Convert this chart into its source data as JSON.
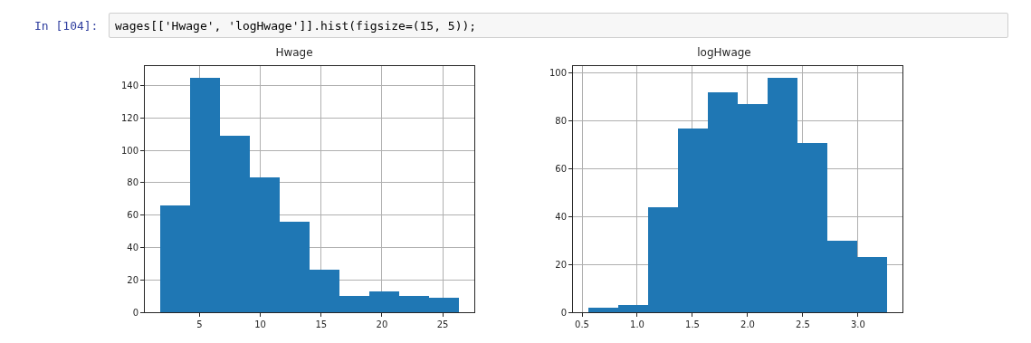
{
  "chart_data": [
    {
      "type": "histogram",
      "title": "Hwage",
      "annotations": [
        "In [104]:",
        "wages[['Hwage', 'logHwage']].hist(figsize=(15, 5));"
      ],
      "bins": [
        1.73,
        4.19,
        6.65,
        9.11,
        11.57,
        14.03,
        16.49,
        18.95,
        21.41,
        23.87,
        26.33
      ],
      "values": [
        66,
        145,
        109,
        83,
        56,
        26,
        10,
        13,
        10,
        9
      ],
      "color": "#1f77b4",
      "xlim": [
        0.5,
        27.6
      ],
      "xticks": [
        5,
        10,
        15,
        20,
        25
      ],
      "ylim": [
        0,
        152
      ],
      "yticks": [
        0,
        20,
        40,
        60,
        80,
        100,
        120,
        140
      ],
      "grid": true
    },
    {
      "type": "histogram",
      "title": "logHwage",
      "bins": [
        0.555,
        0.826,
        1.097,
        1.368,
        1.639,
        1.91,
        2.181,
        2.452,
        2.723,
        2.994,
        3.265
      ],
      "values": [
        2,
        3,
        44,
        77,
        92,
        87,
        98,
        71,
        30,
        23
      ],
      "color": "#1f77b4",
      "xlim": [
        0.418,
        3.402
      ],
      "xticks": [
        {
          "value": 0.5,
          "label": "0.5"
        },
        {
          "value": 1,
          "label": "1.0"
        },
        {
          "value": 1.5,
          "label": "1.5"
        },
        {
          "value": 2,
          "label": "2.0"
        },
        {
          "value": 2.5,
          "label": "2.5"
        },
        {
          "value": 3,
          "label": "3.0"
        }
      ],
      "ylim": [
        0,
        103
      ],
      "yticks": [
        0,
        20,
        40,
        60,
        80,
        100
      ],
      "grid": true
    }
  ]
}
